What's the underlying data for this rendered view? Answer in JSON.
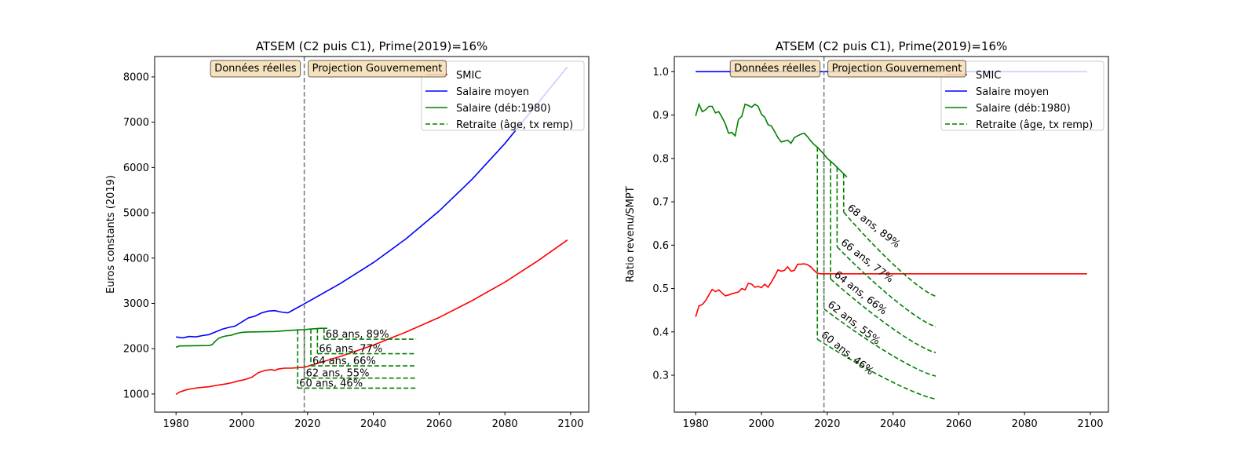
{
  "chart_data": [
    {
      "type": "line",
      "title": "ATSEM (C2 puis C1), Prime(2019)=16%",
      "xlabel": "",
      "ylabel": "Euros constants (2019)",
      "xlim": [
        1973.5,
        2105.5
      ],
      "ylim": [
        600,
        8450
      ],
      "xticks": [
        1980,
        2000,
        2020,
        2040,
        2060,
        2080,
        2100
      ],
      "yticks": [
        1000,
        2000,
        3000,
        4000,
        5000,
        6000,
        7000,
        8000
      ],
      "divider_year": 2019,
      "boxes": [
        {
          "label": "Données réelles",
          "side": "left"
        },
        {
          "label": "Projection Gouvernement",
          "side": "right"
        }
      ],
      "legend": [
        {
          "label": "SMIC",
          "color": "#ff0000",
          "dash": false
        },
        {
          "label": "Salaire moyen",
          "color": "#0000ff",
          "dash": false
        },
        {
          "label": "Salaire (déb:1980)",
          "color": "#008000",
          "dash": false
        },
        {
          "label": "Retraite (âge, tx remp)",
          "color": "#008000",
          "dash": true
        }
      ],
      "series": [
        {
          "name": "SMIC",
          "color": "#ff0000",
          "dash": false,
          "x": [
            1980,
            1981,
            1983,
            1985,
            1987,
            1990,
            1993,
            1995,
            1997,
            1999,
            2001,
            2003,
            2005,
            2007,
            2009,
            2010,
            2011,
            2012,
            2013,
            2015,
            2017,
            2019,
            2025,
            2030,
            2040,
            2050,
            2060,
            2070,
            2080,
            2090,
            2099
          ],
          "y": [
            990,
            1040,
            1090,
            1120,
            1140,
            1160,
            1200,
            1220,
            1250,
            1290,
            1320,
            1370,
            1470,
            1520,
            1540,
            1520,
            1550,
            1560,
            1570,
            1570,
            1580,
            1590,
            1720,
            1830,
            2080,
            2370,
            2690,
            3060,
            3470,
            3940,
            4400
          ]
        },
        {
          "name": "Salaire moyen",
          "color": "#0000ff",
          "dash": false,
          "x": [
            1980,
            1982,
            1984,
            1986,
            1988,
            1990,
            1992,
            1994,
            1996,
            1998,
            2000,
            2002,
            2004,
            2006,
            2008,
            2010,
            2012,
            2014,
            2016,
            2018,
            2019,
            2030,
            2040,
            2050,
            2060,
            2070,
            2080,
            2090,
            2099
          ],
          "y": [
            2260,
            2240,
            2270,
            2260,
            2290,
            2310,
            2370,
            2430,
            2470,
            2500,
            2590,
            2680,
            2720,
            2790,
            2830,
            2840,
            2810,
            2790,
            2870,
            2950,
            2990,
            3440,
            3900,
            4430,
            5040,
            5740,
            6530,
            7420,
            8220
          ]
        },
        {
          "name": "Salaire (déb:1980)",
          "color": "#008000",
          "dash": false,
          "x": [
            1980,
            1981,
            1990,
            1991,
            1992,
            1993,
            1994,
            1995,
            1997,
            1998,
            2000,
            2002,
            2010,
            2012,
            2014,
            2016,
            2018,
            2019,
            2020,
            2022,
            2024,
            2026
          ],
          "y": [
            2030,
            2060,
            2070,
            2090,
            2170,
            2230,
            2260,
            2280,
            2300,
            2330,
            2360,
            2370,
            2380,
            2390,
            2400,
            2410,
            2420,
            2420,
            2430,
            2440,
            2450,
            2450
          ]
        }
      ],
      "retirements": [
        {
          "label": "60 ans, 46%",
          "start": 2017,
          "value": 1130
        },
        {
          "label": "62 ans, 55%",
          "start": 2019,
          "value": 1350
        },
        {
          "label": "64 ans, 66%",
          "start": 2021,
          "value": 1620
        },
        {
          "label": "66 ans, 77%",
          "start": 2023,
          "value": 1890
        },
        {
          "label": "68 ans, 89%",
          "start": 2025,
          "value": 2210
        }
      ],
      "retirement_end": 2053
    },
    {
      "type": "line",
      "title": "ATSEM (C2 puis C1), Prime(2019)=16%",
      "xlabel": "",
      "ylabel": "Ratio revenu/SMPT",
      "xlim": [
        1973.5,
        2105.5
      ],
      "ylim": [
        0.215,
        1.035
      ],
      "xticks": [
        1980,
        2000,
        2020,
        2040,
        2060,
        2080,
        2100
      ],
      "yticks": [
        0.3,
        0.4,
        0.5,
        0.6,
        0.7,
        0.8,
        0.9,
        1.0
      ],
      "yticks_labels": [
        "0.3",
        "0.4",
        "0.5",
        "0.6",
        "0.7",
        "0.8",
        "0.9",
        "1.0"
      ],
      "divider_year": 2019,
      "boxes": [
        {
          "label": "Données réelles",
          "side": "left"
        },
        {
          "label": "Projection Gouvernement",
          "side": "right"
        }
      ],
      "legend": [
        {
          "label": "SMIC",
          "color": "#ff0000",
          "dash": false
        },
        {
          "label": "Salaire moyen",
          "color": "#0000ff",
          "dash": false
        },
        {
          "label": "Salaire (déb:1980)",
          "color": "#008000",
          "dash": false
        },
        {
          "label": "Retraite (âge, tx remp)",
          "color": "#008000",
          "dash": true
        }
      ],
      "series": [
        {
          "name": "SMIC",
          "color": "#ff0000",
          "dash": false,
          "x": [
            1980,
            1981,
            1982,
            1983,
            1984,
            1985,
            1986,
            1987,
            1988,
            1989,
            1990,
            1991,
            1992,
            1993,
            1994,
            1995,
            1996,
            1997,
            1998,
            1999,
            2000,
            2001,
            2002,
            2003,
            2004,
            2005,
            2006,
            2007,
            2008,
            2009,
            2010,
            2011,
            2012,
            2013,
            2014,
            2015,
            2016,
            2017,
            2018,
            2019,
            2099
          ],
          "y": [
            0.435,
            0.46,
            0.463,
            0.472,
            0.485,
            0.498,
            0.493,
            0.497,
            0.49,
            0.483,
            0.485,
            0.488,
            0.49,
            0.492,
            0.5,
            0.497,
            0.512,
            0.51,
            0.503,
            0.505,
            0.502,
            0.51,
            0.503,
            0.515,
            0.528,
            0.543,
            0.54,
            0.542,
            0.55,
            0.54,
            0.542,
            0.556,
            0.556,
            0.557,
            0.555,
            0.55,
            0.542,
            0.535,
            0.534,
            0.534,
            0.534
          ]
        },
        {
          "name": "Salaire moyen",
          "color": "#0000ff",
          "dash": false,
          "x": [
            1980,
            2099
          ],
          "y": [
            1.0,
            1.0
          ]
        },
        {
          "name": "Salaire (déb:1980)",
          "color": "#008000",
          "dash": false,
          "x": [
            1980,
            1981,
            1982,
            1983,
            1984,
            1985,
            1986,
            1987,
            1988,
            1989,
            1990,
            1991,
            1992,
            1993,
            1994,
            1995,
            1996,
            1997,
            1998,
            1999,
            2000,
            2001,
            2002,
            2003,
            2004,
            2005,
            2006,
            2007,
            2008,
            2009,
            2010,
            2011,
            2012,
            2013,
            2014,
            2015,
            2016,
            2017,
            2018,
            2019,
            2020,
            2022,
            2024,
            2026
          ],
          "y": [
            0.898,
            0.925,
            0.908,
            0.912,
            0.92,
            0.92,
            0.905,
            0.908,
            0.895,
            0.88,
            0.858,
            0.86,
            0.852,
            0.89,
            0.897,
            0.925,
            0.922,
            0.918,
            0.925,
            0.92,
            0.902,
            0.895,
            0.878,
            0.875,
            0.862,
            0.848,
            0.838,
            0.84,
            0.842,
            0.835,
            0.848,
            0.852,
            0.856,
            0.858,
            0.85,
            0.84,
            0.832,
            0.826,
            0.818,
            0.81,
            0.8,
            0.787,
            0.772,
            0.757
          ]
        }
      ],
      "retirements": [
        {
          "label": "60 ans, 46%",
          "start": 2017,
          "start_value": 0.383,
          "end_value": 0.245
        },
        {
          "label": "62 ans, 55%",
          "start": 2019,
          "start_value": 0.453,
          "end_value": 0.298
        },
        {
          "label": "64 ans, 66%",
          "start": 2021,
          "start_value": 0.522,
          "end_value": 0.352
        },
        {
          "label": "66 ans, 77%",
          "start": 2023,
          "start_value": 0.596,
          "end_value": 0.412
        },
        {
          "label": "68 ans, 89%",
          "start": 2025,
          "start_value": 0.676,
          "end_value": 0.482
        }
      ],
      "retirement_end": 2053
    }
  ]
}
